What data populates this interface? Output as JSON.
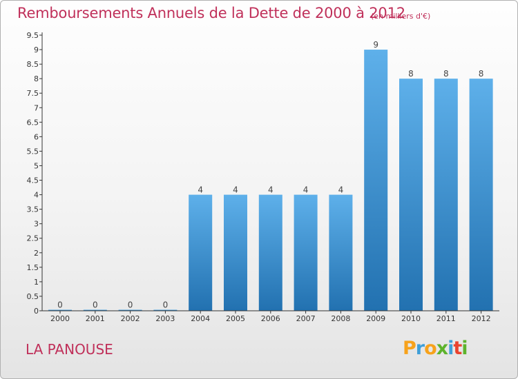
{
  "header": {
    "title": "Remboursements Annuels de la Dette de 2000 à 2012",
    "subtitle": "(en milliers d'€)"
  },
  "footer": {
    "commune": "LA PANOUSE",
    "brand": "Proxiti",
    "brand_colors": [
      "#f7a21b",
      "#3f9fd8",
      "#f7a21b",
      "#5db32c",
      "#3f9fd8",
      "#e9432f",
      "#5db32c"
    ]
  },
  "colors": {
    "accent": "#c0305a",
    "bar_top": "#5eb0ea",
    "bar_bottom": "#2271b0",
    "axis": "#333333"
  },
  "chart_data": {
    "type": "bar",
    "categories": [
      "2000",
      "2001",
      "2002",
      "2003",
      "2004",
      "2005",
      "2006",
      "2007",
      "2008",
      "2009",
      "2010",
      "2011",
      "2012"
    ],
    "values": [
      0,
      0,
      0,
      0,
      4,
      4,
      4,
      4,
      4,
      9,
      8,
      8,
      8
    ],
    "value_labels": [
      "0",
      "0",
      "0",
      "0",
      "4",
      "4",
      "4",
      "4",
      "4",
      "9",
      "8",
      "8",
      "8"
    ],
    "yticks": [
      "0",
      "0.5",
      "1",
      "1.5",
      "2",
      "2.5",
      "3",
      "3.5",
      "4",
      "4.5",
      "5",
      "5.5",
      "6",
      "6.5",
      "7",
      "7.5",
      "8",
      "8.5",
      "9",
      "9.5"
    ],
    "ylim": [
      0,
      9.5
    ],
    "grid": false
  }
}
